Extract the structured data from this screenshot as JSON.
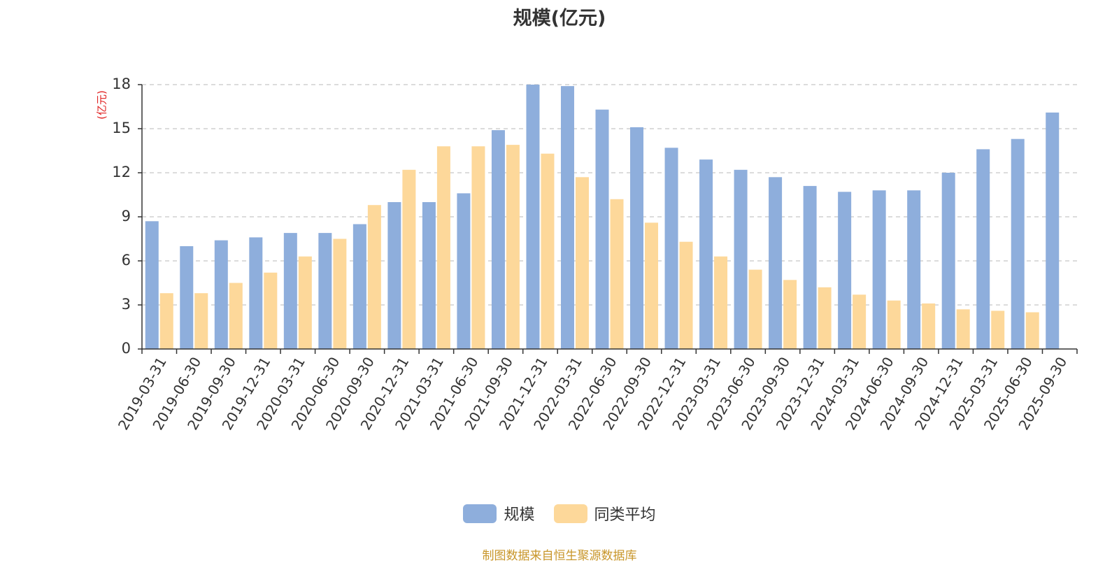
{
  "chart_data": {
    "type": "bar",
    "title": "规模(亿元)",
    "ylabel": "(亿元)",
    "ylim": [
      0,
      18
    ],
    "yticks": [
      0,
      3,
      6,
      9,
      12,
      15,
      18
    ],
    "grid": true,
    "legend_position": "bottom",
    "categories": [
      "2019-03-31",
      "2019-06-30",
      "2019-09-30",
      "2019-12-31",
      "2020-03-31",
      "2020-06-30",
      "2020-09-30",
      "2020-12-31",
      "2021-03-31",
      "2021-06-30",
      "2021-09-30",
      "2021-12-31",
      "2022-03-31",
      "2022-06-30",
      "2022-09-30",
      "2022-12-31",
      "2023-03-31",
      "2023-06-30",
      "2023-09-30",
      "2023-12-31",
      "2024-03-31",
      "2024-06-30",
      "2024-09-30",
      "2024-12-31",
      "2025-03-31",
      "2025-06-30",
      "2025-09-30"
    ],
    "series": [
      {
        "name": "规模",
        "color": "#8eaedc",
        "values": [
          8.7,
          7.0,
          7.4,
          7.6,
          7.9,
          7.9,
          8.5,
          10.0,
          10.0,
          10.6,
          14.9,
          18.0,
          17.9,
          16.3,
          15.1,
          13.7,
          12.9,
          12.2,
          11.7,
          11.1,
          10.7,
          10.8,
          10.8,
          12.0,
          13.6,
          14.3,
          16.1
        ]
      },
      {
        "name": "同类平均",
        "color": "#fdd89a",
        "values": [
          3.8,
          3.8,
          4.5,
          5.2,
          6.3,
          7.5,
          9.8,
          12.2,
          13.8,
          13.8,
          13.9,
          13.3,
          11.7,
          10.2,
          8.6,
          7.3,
          6.3,
          5.4,
          4.7,
          4.2,
          3.7,
          3.3,
          3.1,
          2.7,
          2.6,
          2.5,
          null
        ]
      }
    ]
  },
  "footer": {
    "source": "制图数据来自恒生聚源数据库"
  }
}
